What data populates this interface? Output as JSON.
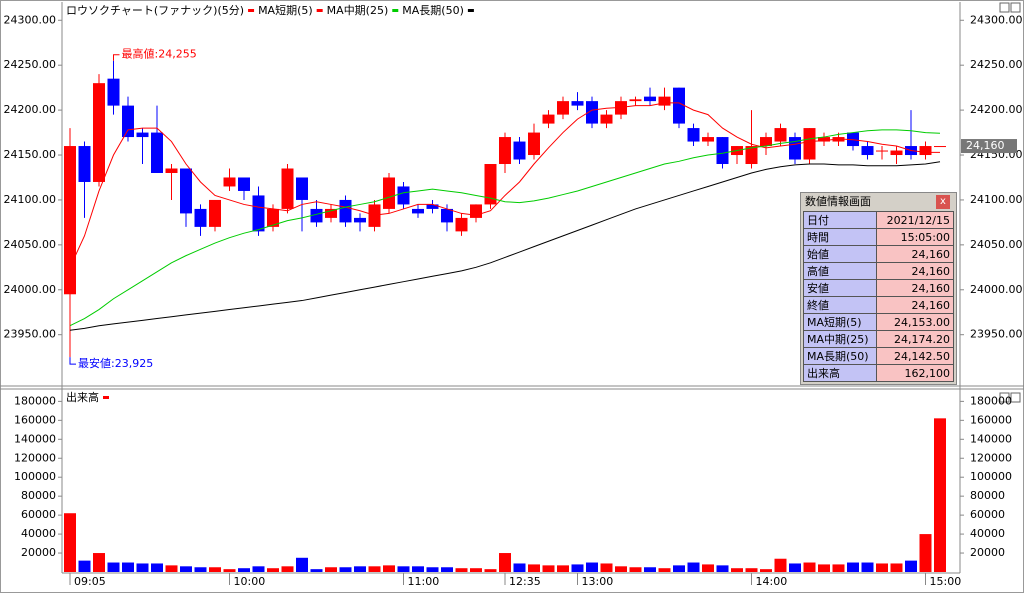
{
  "chart_data": [
    {
      "type": "candlestick",
      "title": "ロウソクチャート(ファナック)(5分)",
      "up_color": "#ff0000",
      "down_color": "#0000ff",
      "open": [
        23995,
        24160,
        24120,
        24235,
        24205,
        24175,
        24175,
        24130,
        24135,
        24090,
        24070,
        24115,
        24125,
        24105,
        24070,
        24090,
        24125,
        24090,
        24080,
        24100,
        24080,
        24070,
        24090,
        24115,
        24090,
        24095,
        24090,
        24065,
        24080,
        24095,
        24140,
        24165,
        24150,
        24185,
        24195,
        24210,
        24210,
        24185,
        24195,
        24210,
        24215,
        24205,
        24225,
        24180,
        24165,
        24170,
        24150,
        24140,
        24160,
        24165,
        24170,
        24145,
        24165,
        24165,
        24175,
        24160,
        24155,
        24150,
        24160,
        24150,
        24160
      ],
      "high": [
        24180,
        24165,
        24240,
        24255,
        24215,
        24180,
        24205,
        24140,
        24135,
        24095,
        24100,
        24135,
        24125,
        24115,
        24095,
        24140,
        24125,
        24100,
        24095,
        24105,
        24085,
        24100,
        24130,
        24120,
        24095,
        24100,
        24095,
        24085,
        24095,
        24140,
        24175,
        24170,
        24185,
        24200,
        24215,
        24220,
        24215,
        24200,
        24215,
        24215,
        24225,
        24225,
        24225,
        24185,
        24175,
        24170,
        24160,
        24200,
        24175,
        24185,
        24175,
        24180,
        24175,
        24175,
        24175,
        24165,
        24160,
        24160,
        24200,
        24165,
        24160
      ],
      "low": [
        23925,
        24080,
        24115,
        24195,
        24165,
        24140,
        24130,
        24100,
        24070,
        24060,
        24065,
        24110,
        24100,
        24060,
        24065,
        24085,
        24065,
        24070,
        24075,
        24070,
        24065,
        24065,
        24085,
        24090,
        24080,
        24085,
        24065,
        24060,
        24075,
        24090,
        24130,
        24140,
        24145,
        24180,
        24190,
        24200,
        24180,
        24180,
        24190,
        24205,
        24205,
        24200,
        24180,
        24160,
        24160,
        24135,
        24140,
        24135,
        24150,
        24160,
        24140,
        24140,
        24160,
        24160,
        24155,
        24145,
        24145,
        24140,
        24145,
        24145,
        24160
      ],
      "close": [
        24160,
        24120,
        24230,
        24205,
        24170,
        24170,
        24130,
        24135,
        24085,
        24070,
        24100,
        24125,
        24110,
        24065,
        24090,
        24135,
        24100,
        24075,
        24090,
        24075,
        24075,
        24095,
        24125,
        24095,
        24085,
        24090,
        24075,
        24080,
        24095,
        24140,
        24170,
        24145,
        24175,
        24195,
        24210,
        24205,
        24185,
        24195,
        24210,
        24212,
        24210,
        24215,
        24185,
        24165,
        24170,
        24140,
        24160,
        24160,
        24170,
        24180,
        24145,
        24180,
        24170,
        24170,
        24160,
        24150,
        24155,
        24155,
        24150,
        24160,
        24160
      ],
      "series": [
        {
          "name": "MA短期(5)",
          "color": "#ff0000",
          "values": [
            24025,
            24060,
            24110,
            24150,
            24178,
            24180,
            24180,
            24165,
            24140,
            24120,
            24105,
            24100,
            24095,
            24092,
            24090,
            24088,
            24095,
            24098,
            24095,
            24092,
            24088,
            24083,
            24085,
            24090,
            24095,
            24095,
            24090,
            24085,
            24083,
            24088,
            24105,
            24120,
            24140,
            24158,
            24175,
            24190,
            24200,
            24202,
            24203,
            24205,
            24205,
            24208,
            24208,
            24200,
            24195,
            24180,
            24170,
            24162,
            24158,
            24160,
            24162,
            24165,
            24166,
            24168,
            24167,
            24165,
            24162,
            24160,
            24155,
            24153,
            24153
          ]
        },
        {
          "name": "MA中期(25)",
          "color": "#00cc00",
          "values": [
            23960,
            23968,
            23978,
            23990,
            24000,
            24010,
            24020,
            24030,
            24038,
            24045,
            24052,
            24058,
            24063,
            24067,
            24072,
            24077,
            24080,
            24084,
            24088,
            24092,
            24095,
            24098,
            24103,
            24108,
            24110,
            24112,
            24110,
            24108,
            24105,
            24102,
            24098,
            24097,
            24099,
            24102,
            24106,
            24110,
            24115,
            24120,
            24125,
            24130,
            24135,
            24140,
            24143,
            24147,
            24150,
            24152,
            24155,
            24158,
            24160,
            24163,
            24165,
            24168,
            24170,
            24173,
            24175,
            24177,
            24178,
            24178,
            24177,
            24175,
            24174.2
          ]
        },
        {
          "name": "MA長期(50)",
          "color": "#000000",
          "values": [
            23955,
            23957,
            23960,
            23962,
            23964,
            23966,
            23968,
            23970,
            23972,
            23974,
            23976,
            23978,
            23980,
            23982,
            23984,
            23986,
            23988,
            23991,
            23994,
            23997,
            24000,
            24003,
            24006,
            24009,
            24012,
            24015,
            24018,
            24021,
            24025,
            24030,
            24036,
            24042,
            24048,
            24054,
            24060,
            24066,
            24072,
            24078,
            24084,
            24090,
            24095,
            24100,
            24105,
            24110,
            24115,
            24120,
            24125,
            24130,
            24134,
            24137,
            24139,
            24140,
            24140,
            24139,
            24139,
            24138,
            24138,
            24138,
            24139,
            24140,
            24142.5
          ]
        }
      ],
      "ylim": [
        23894,
        24317
      ],
      "yticks": [
        {
          "value": 23950,
          "label": "23950.00"
        },
        {
          "value": 24000,
          "label": "24000.00"
        },
        {
          "value": 24050,
          "label": "24050.00"
        },
        {
          "value": 24100,
          "label": "24100.00"
        },
        {
          "value": 24150,
          "label": "24150.00"
        },
        {
          "value": 24200,
          "label": "24200.00"
        },
        {
          "value": 24250,
          "label": "24250.00"
        },
        {
          "value": 24300,
          "label": "24300.00"
        }
      ],
      "last_price": {
        "value": 24160,
        "label": "24,160"
      },
      "annotations": [
        {
          "text": "最高値:24,255",
          "index": 3,
          "value": 24255
        },
        {
          "text": "最安値:23,925",
          "index": 0,
          "value": 23925
        }
      ]
    },
    {
      "type": "bar",
      "title": "出来高",
      "color": "#ff0000",
      "categories": [
        "09:05",
        null,
        null,
        null,
        null,
        null,
        null,
        null,
        null,
        null,
        null,
        "10:00",
        null,
        null,
        null,
        null,
        null,
        null,
        null,
        null,
        null,
        null,
        null,
        "11:00",
        null,
        null,
        null,
        null,
        null,
        null,
        "12:35",
        null,
        null,
        null,
        null,
        "13:00",
        null,
        null,
        null,
        null,
        null,
        null,
        null,
        null,
        null,
        null,
        null,
        "14:00",
        null,
        null,
        null,
        null,
        null,
        null,
        null,
        null,
        null,
        null,
        null,
        "15:00",
        null
      ],
      "values": [
        62000,
        12000,
        20000,
        10000,
        10000,
        9000,
        9000,
        7000,
        6000,
        5000,
        5000,
        3000,
        4000,
        6000,
        4000,
        6000,
        15000,
        3000,
        5000,
        5000,
        6000,
        6000,
        7000,
        6000,
        6000,
        5000,
        5000,
        4000,
        4000,
        3000,
        20000,
        9000,
        8000,
        7000,
        7000,
        8000,
        10000,
        9000,
        6000,
        5000,
        5000,
        4000,
        7000,
        10000,
        8000,
        7000,
        4000,
        4000,
        3000,
        14000,
        9000,
        10000,
        8000,
        8000,
        10000,
        10000,
        9000,
        9000,
        12000,
        40000,
        162100
      ],
      "ylim": [
        0,
        192000
      ],
      "yticks": [
        20000,
        40000,
        60000,
        80000,
        100000,
        120000,
        140000,
        160000,
        180000
      ]
    }
  ],
  "info_panel": {
    "title": "数値情報画面",
    "close": "x",
    "rows": [
      [
        "日付",
        "2021/12/15"
      ],
      [
        "時間",
        "15:05:00"
      ],
      [
        "始値",
        "24,160"
      ],
      [
        "高値",
        "24,160"
      ],
      [
        "安値",
        "24,160"
      ],
      [
        "終値",
        "24,160"
      ],
      [
        "MA短期(5)",
        "24,153.00"
      ],
      [
        "MA中期(25)",
        "24,174.20"
      ],
      [
        "MA長期(50)",
        "24,142.50"
      ],
      [
        "出来高",
        "162,100"
      ]
    ]
  }
}
